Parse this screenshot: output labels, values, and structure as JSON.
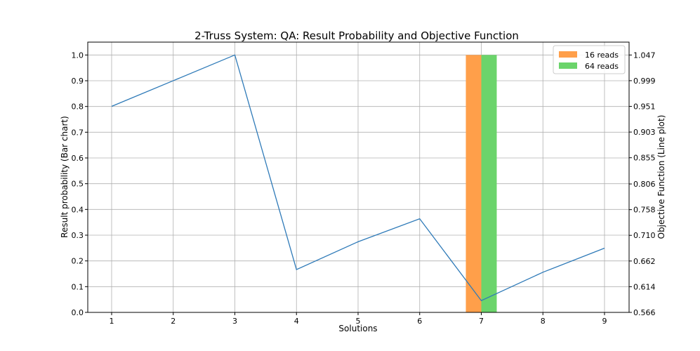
{
  "chart_data": {
    "type": "bar+line",
    "title": "2-Truss System: QA: Result Probability and Objective Function",
    "xlabel": "Solutions",
    "ylabel_left": "Result probability (Bar chart)",
    "ylabel_right": "Objective Function (Line plot)",
    "categories": [
      "1",
      "2",
      "3",
      "4",
      "5",
      "6",
      "7",
      "8",
      "9"
    ],
    "ylim_left": [
      0,
      1.05
    ],
    "yticks_left": [
      "0.0",
      "0.1",
      "0.2",
      "0.3",
      "0.4",
      "0.5",
      "0.6",
      "0.7",
      "0.8",
      "0.9",
      "1.0"
    ],
    "ylim_right": [
      0.566,
      1.047
    ],
    "yticks_right": [
      "0.566",
      "0.614",
      "0.662",
      "0.710",
      "0.758",
      "0.806",
      "0.855",
      "0.903",
      "0.951",
      "0.999",
      "1.047"
    ],
    "grid": true,
    "legend_position": "top-right",
    "bar_series": [
      {
        "name": "16 reads",
        "color": "#ff9f4a",
        "values": [
          0,
          0,
          0,
          0,
          0,
          0,
          1.0,
          0,
          0
        ]
      },
      {
        "name": "64 reads",
        "color": "#6bd46b",
        "values": [
          0,
          0,
          0,
          0,
          0,
          0,
          1.0,
          0,
          0
        ]
      }
    ],
    "line_series": {
      "color": "#2e7ab8",
      "values": [
        0.951,
        0.999,
        1.047,
        0.646,
        0.698,
        0.741,
        0.588,
        0.641,
        0.686
      ]
    }
  }
}
